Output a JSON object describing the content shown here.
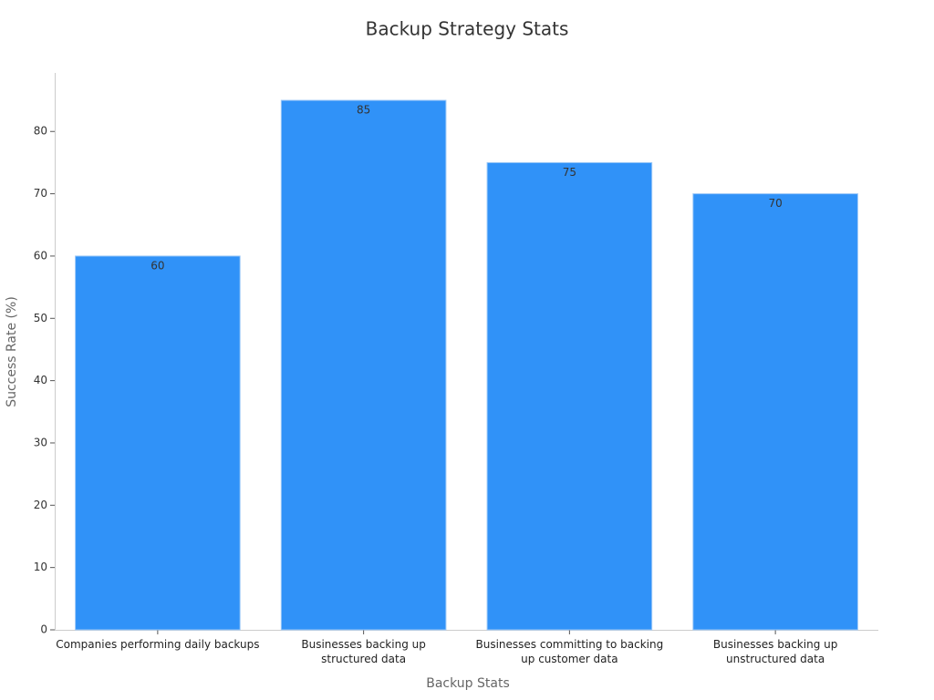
{
  "chart_data": {
    "type": "bar",
    "title": "Backup Strategy Stats",
    "x_label": "Backup Stats",
    "y_label": "Success Rate (%)",
    "categories": [
      "Companies performing daily backups",
      "Businesses backing up\nstructured data",
      "Businesses committing to backing\nup customer data",
      "Businesses backing up\nunstructured data"
    ],
    "values": [
      60,
      85,
      75,
      70
    ],
    "color": "#3092f8",
    "ylim": [
      0,
      89.4
    ],
    "yticks": [
      0,
      10,
      20,
      30,
      40,
      50,
      60,
      70,
      80
    ],
    "grid": false
  }
}
